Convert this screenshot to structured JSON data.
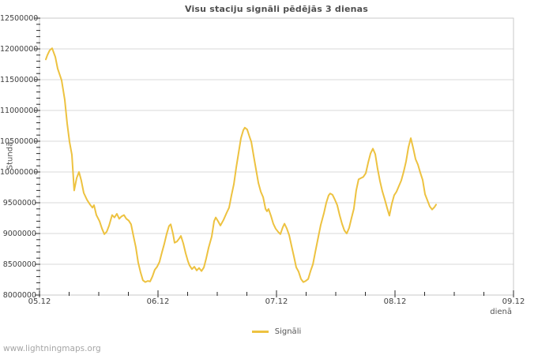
{
  "page": {
    "watermark": "www.lightningmaps.org"
  },
  "chart_data": {
    "type": "line",
    "title": "Visu staciju signāli pēdējās 3 dienas",
    "xlabel": "dienā",
    "ylabel": "Stundā",
    "grid": "horizontal-only",
    "legend": {
      "position": "bottom-center",
      "entries": [
        {
          "label": "Signāli",
          "color": "#EDC240"
        }
      ]
    },
    "x_axis": {
      "tick_labels": [
        "05.12",
        "06.12",
        "07.12",
        "08.12",
        "09.12"
      ],
      "tick_days": [
        0,
        1,
        2,
        3,
        4
      ],
      "range_days": [
        0,
        4
      ],
      "minor_step_days": 0.25
    },
    "y_axis": {
      "ticks": [
        8000000,
        8500000,
        9000000,
        9500000,
        10000000,
        10500000,
        11000000,
        11500000,
        12000000,
        12500000
      ],
      "ylim": [
        8000000,
        12500000
      ],
      "minor_step": 100000
    },
    "series": [
      {
        "name": "Signāli",
        "color": "#EDC240",
        "points": [
          [
            0.053,
            11830000
          ],
          [
            0.067,
            11900000
          ],
          [
            0.087,
            11980000
          ],
          [
            0.107,
            12010000
          ],
          [
            0.133,
            11870000
          ],
          [
            0.153,
            11680000
          ],
          [
            0.187,
            11490000
          ],
          [
            0.213,
            11170000
          ],
          [
            0.233,
            10790000
          ],
          [
            0.253,
            10490000
          ],
          [
            0.273,
            10280000
          ],
          [
            0.293,
            9700000
          ],
          [
            0.313,
            9900000
          ],
          [
            0.333,
            10000000
          ],
          [
            0.353,
            9860000
          ],
          [
            0.373,
            9660000
          ],
          [
            0.4,
            9550000
          ],
          [
            0.427,
            9470000
          ],
          [
            0.447,
            9420000
          ],
          [
            0.46,
            9460000
          ],
          [
            0.48,
            9300000
          ],
          [
            0.507,
            9200000
          ],
          [
            0.527,
            9080000
          ],
          [
            0.547,
            8990000
          ],
          [
            0.567,
            9030000
          ],
          [
            0.587,
            9130000
          ],
          [
            0.613,
            9300000
          ],
          [
            0.633,
            9260000
          ],
          [
            0.653,
            9320000
          ],
          [
            0.673,
            9240000
          ],
          [
            0.693,
            9280000
          ],
          [
            0.713,
            9300000
          ],
          [
            0.733,
            9240000
          ],
          [
            0.753,
            9210000
          ],
          [
            0.773,
            9150000
          ],
          [
            0.793,
            8960000
          ],
          [
            0.813,
            8780000
          ],
          [
            0.833,
            8530000
          ],
          [
            0.853,
            8370000
          ],
          [
            0.873,
            8240000
          ],
          [
            0.893,
            8210000
          ],
          [
            0.913,
            8230000
          ],
          [
            0.933,
            8220000
          ],
          [
            0.953,
            8300000
          ],
          [
            0.973,
            8410000
          ],
          [
            0.993,
            8460000
          ],
          [
            1.013,
            8540000
          ],
          [
            1.033,
            8690000
          ],
          [
            1.053,
            8830000
          ],
          [
            1.073,
            8990000
          ],
          [
            1.093,
            9120000
          ],
          [
            1.107,
            9150000
          ],
          [
            1.127,
            8990000
          ],
          [
            1.14,
            8850000
          ],
          [
            1.16,
            8870000
          ],
          [
            1.18,
            8920000
          ],
          [
            1.193,
            8960000
          ],
          [
            1.213,
            8840000
          ],
          [
            1.233,
            8680000
          ],
          [
            1.253,
            8550000
          ],
          [
            1.267,
            8480000
          ],
          [
            1.287,
            8420000
          ],
          [
            1.307,
            8460000
          ],
          [
            1.327,
            8400000
          ],
          [
            1.347,
            8440000
          ],
          [
            1.367,
            8390000
          ],
          [
            1.387,
            8450000
          ],
          [
            1.407,
            8600000
          ],
          [
            1.427,
            8770000
          ],
          [
            1.453,
            8950000
          ],
          [
            1.473,
            9200000
          ],
          [
            1.487,
            9260000
          ],
          [
            1.507,
            9200000
          ],
          [
            1.527,
            9130000
          ],
          [
            1.553,
            9220000
          ],
          [
            1.58,
            9340000
          ],
          [
            1.6,
            9420000
          ],
          [
            1.62,
            9620000
          ],
          [
            1.64,
            9800000
          ],
          [
            1.66,
            10070000
          ],
          [
            1.68,
            10310000
          ],
          [
            1.7,
            10550000
          ],
          [
            1.72,
            10680000
          ],
          [
            1.733,
            10720000
          ],
          [
            1.753,
            10690000
          ],
          [
            1.773,
            10570000
          ],
          [
            1.787,
            10490000
          ],
          [
            1.807,
            10260000
          ],
          [
            1.827,
            10040000
          ],
          [
            1.847,
            9820000
          ],
          [
            1.867,
            9680000
          ],
          [
            1.887,
            9590000
          ],
          [
            1.907,
            9400000
          ],
          [
            1.92,
            9360000
          ],
          [
            1.933,
            9400000
          ],
          [
            1.953,
            9290000
          ],
          [
            1.973,
            9160000
          ],
          [
            1.993,
            9080000
          ],
          [
            2.013,
            9030000
          ],
          [
            2.033,
            8990000
          ],
          [
            2.053,
            9100000
          ],
          [
            2.067,
            9160000
          ],
          [
            2.087,
            9080000
          ],
          [
            2.107,
            8970000
          ],
          [
            2.127,
            8800000
          ],
          [
            2.147,
            8630000
          ],
          [
            2.167,
            8450000
          ],
          [
            2.187,
            8380000
          ],
          [
            2.207,
            8260000
          ],
          [
            2.227,
            8210000
          ],
          [
            2.247,
            8230000
          ],
          [
            2.267,
            8260000
          ],
          [
            2.287,
            8390000
          ],
          [
            2.307,
            8500000
          ],
          [
            2.327,
            8700000
          ],
          [
            2.353,
            8950000
          ],
          [
            2.373,
            9140000
          ],
          [
            2.4,
            9330000
          ],
          [
            2.42,
            9500000
          ],
          [
            2.44,
            9620000
          ],
          [
            2.453,
            9650000
          ],
          [
            2.473,
            9630000
          ],
          [
            2.493,
            9550000
          ],
          [
            2.513,
            9460000
          ],
          [
            2.533,
            9300000
          ],
          [
            2.553,
            9160000
          ],
          [
            2.573,
            9050000
          ],
          [
            2.593,
            9000000
          ],
          [
            2.613,
            9090000
          ],
          [
            2.633,
            9250000
          ],
          [
            2.653,
            9400000
          ],
          [
            2.673,
            9700000
          ],
          [
            2.693,
            9880000
          ],
          [
            2.713,
            9900000
          ],
          [
            2.733,
            9920000
          ],
          [
            2.753,
            9980000
          ],
          [
            2.773,
            10150000
          ],
          [
            2.793,
            10300000
          ],
          [
            2.813,
            10380000
          ],
          [
            2.833,
            10290000
          ],
          [
            2.853,
            10050000
          ],
          [
            2.873,
            9850000
          ],
          [
            2.893,
            9690000
          ],
          [
            2.913,
            9560000
          ],
          [
            2.933,
            9420000
          ],
          [
            2.953,
            9290000
          ],
          [
            2.973,
            9480000
          ],
          [
            2.993,
            9620000
          ],
          [
            3.013,
            9680000
          ],
          [
            3.033,
            9770000
          ],
          [
            3.053,
            9860000
          ],
          [
            3.073,
            10000000
          ],
          [
            3.093,
            10170000
          ],
          [
            3.113,
            10400000
          ],
          [
            3.133,
            10550000
          ],
          [
            3.153,
            10390000
          ],
          [
            3.173,
            10210000
          ],
          [
            3.193,
            10120000
          ],
          [
            3.213,
            9990000
          ],
          [
            3.233,
            9870000
          ],
          [
            3.253,
            9640000
          ],
          [
            3.273,
            9540000
          ],
          [
            3.293,
            9440000
          ],
          [
            3.313,
            9390000
          ],
          [
            3.333,
            9430000
          ],
          [
            3.347,
            9470000
          ]
        ]
      }
    ]
  },
  "colors": {
    "series": "#EDC240",
    "gridline": "#d8d8d8",
    "frame": "#c9c9c9",
    "tick_mark": "#2a2a2a",
    "tick_text": "#3f3f3f",
    "title_text": "#4f4f4f",
    "axis_name_text": "#545454",
    "watermark_text": "#a5a5a5",
    "background": "#ffffff"
  }
}
